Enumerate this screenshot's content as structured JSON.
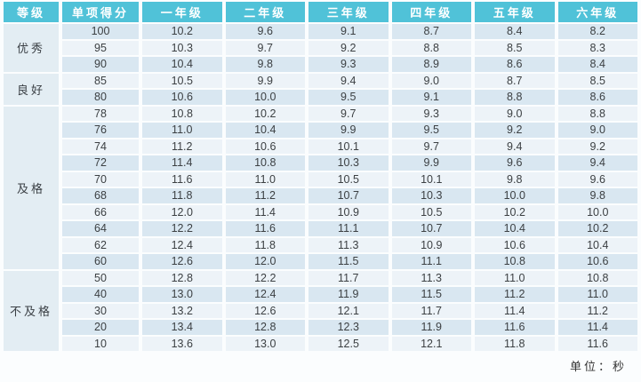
{
  "chart_data": {
    "type": "table",
    "columns": [
      "等级",
      "单项得分",
      "一年级",
      "二年级",
      "三年级",
      "四年级",
      "五年级",
      "六年级"
    ],
    "row_groups": [
      {
        "label": "优秀",
        "rows": [
          {
            "score": "100",
            "values": [
              "10.2",
              "9.6",
              "9.1",
              "8.7",
              "8.4",
              "8.2"
            ]
          },
          {
            "score": "95",
            "values": [
              "10.3",
              "9.7",
              "9.2",
              "8.8",
              "8.5",
              "8.3"
            ]
          },
          {
            "score": "90",
            "values": [
              "10.4",
              "9.8",
              "9.3",
              "8.9",
              "8.6",
              "8.4"
            ]
          }
        ]
      },
      {
        "label": "良好",
        "rows": [
          {
            "score": "85",
            "values": [
              "10.5",
              "9.9",
              "9.4",
              "9.0",
              "8.7",
              "8.5"
            ]
          },
          {
            "score": "80",
            "values": [
              "10.6",
              "10.0",
              "9.5",
              "9.1",
              "8.8",
              "8.6"
            ]
          }
        ]
      },
      {
        "label": "及格",
        "rows": [
          {
            "score": "78",
            "values": [
              "10.8",
              "10.2",
              "9.7",
              "9.3",
              "9.0",
              "8.8"
            ]
          },
          {
            "score": "76",
            "values": [
              "11.0",
              "10.4",
              "9.9",
              "9.5",
              "9.2",
              "9.0"
            ]
          },
          {
            "score": "74",
            "values": [
              "11.2",
              "10.6",
              "10.1",
              "9.7",
              "9.4",
              "9.2"
            ]
          },
          {
            "score": "72",
            "values": [
              "11.4",
              "10.8",
              "10.3",
              "9.9",
              "9.6",
              "9.4"
            ]
          },
          {
            "score": "70",
            "values": [
              "11.6",
              "11.0",
              "10.5",
              "10.1",
              "9.8",
              "9.6"
            ]
          },
          {
            "score": "68",
            "values": [
              "11.8",
              "11.2",
              "10.7",
              "10.3",
              "10.0",
              "9.8"
            ]
          },
          {
            "score": "66",
            "values": [
              "12.0",
              "11.4",
              "10.9",
              "10.5",
              "10.2",
              "10.0"
            ]
          },
          {
            "score": "64",
            "values": [
              "12.2",
              "11.6",
              "11.1",
              "10.7",
              "10.4",
              "10.2"
            ]
          },
          {
            "score": "62",
            "values": [
              "12.4",
              "11.8",
              "11.3",
              "10.9",
              "10.6",
              "10.4"
            ]
          },
          {
            "score": "60",
            "values": [
              "12.6",
              "12.0",
              "11.5",
              "11.1",
              "10.8",
              "10.6"
            ]
          }
        ]
      },
      {
        "label": "不及格",
        "rows": [
          {
            "score": "50",
            "values": [
              "12.8",
              "12.2",
              "11.7",
              "11.3",
              "11.0",
              "10.8"
            ]
          },
          {
            "score": "40",
            "values": [
              "13.0",
              "12.4",
              "11.9",
              "11.5",
              "11.2",
              "11.0"
            ]
          },
          {
            "score": "30",
            "values": [
              "13.2",
              "12.6",
              "12.1",
              "11.7",
              "11.4",
              "11.2"
            ]
          },
          {
            "score": "20",
            "values": [
              "13.4",
              "12.8",
              "12.3",
              "11.9",
              "11.6",
              "11.4"
            ]
          },
          {
            "score": "10",
            "values": [
              "13.6",
              "13.0",
              "12.5",
              "12.1",
              "11.8",
              "11.6"
            ]
          }
        ]
      }
    ],
    "unit_note": "单位：秒",
    "colors": {
      "header_bg": "#50c2d8",
      "header_text": "#ffffff",
      "stripe_blue": "#d9e7f1",
      "stripe_light": "#edf3f8",
      "grade_column_bg": "#e3edf3",
      "body_text": "#3c4043"
    }
  }
}
